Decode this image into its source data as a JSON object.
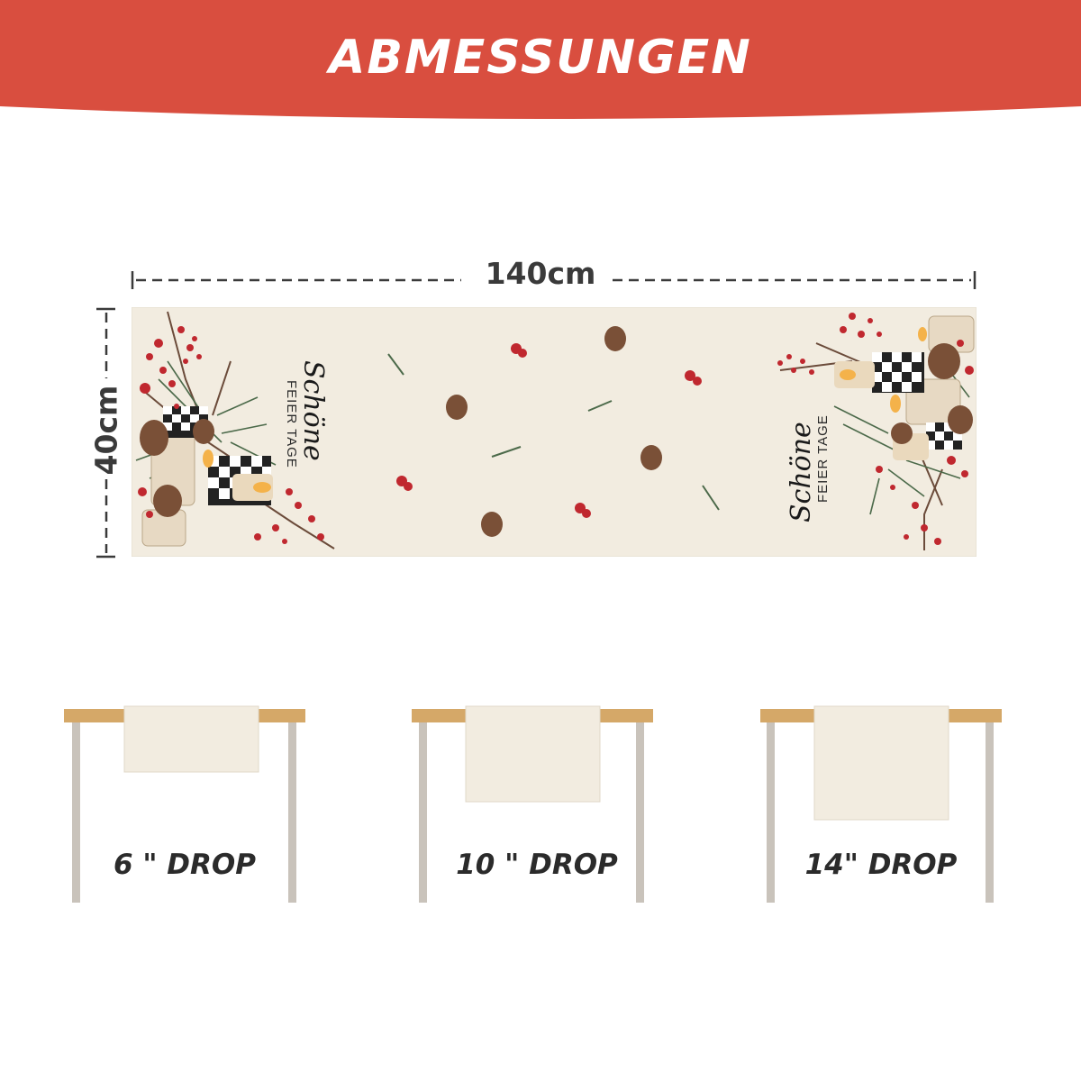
{
  "header": {
    "title": "ABMESSUNGEN",
    "color": "#d94e3f"
  },
  "dimensions": {
    "width_label": "140cm",
    "height_label": "40cm"
  },
  "runner": {
    "background": "#f2ece0",
    "text_script": "Schöne",
    "text_caps": "FEIER TAGE"
  },
  "drops": [
    {
      "label": "6 \" DROP",
      "drop_inches": 6
    },
    {
      "label": "10 \" DROP",
      "drop_inches": 10
    },
    {
      "label": "14\" DROP",
      "drop_inches": 14
    }
  ],
  "colors": {
    "table_top": "#d5a868",
    "table_leg": "#c9c3bb",
    "berry": "#c0282f",
    "pine": "#4c6a4a",
    "cone": "#7a5037"
  }
}
